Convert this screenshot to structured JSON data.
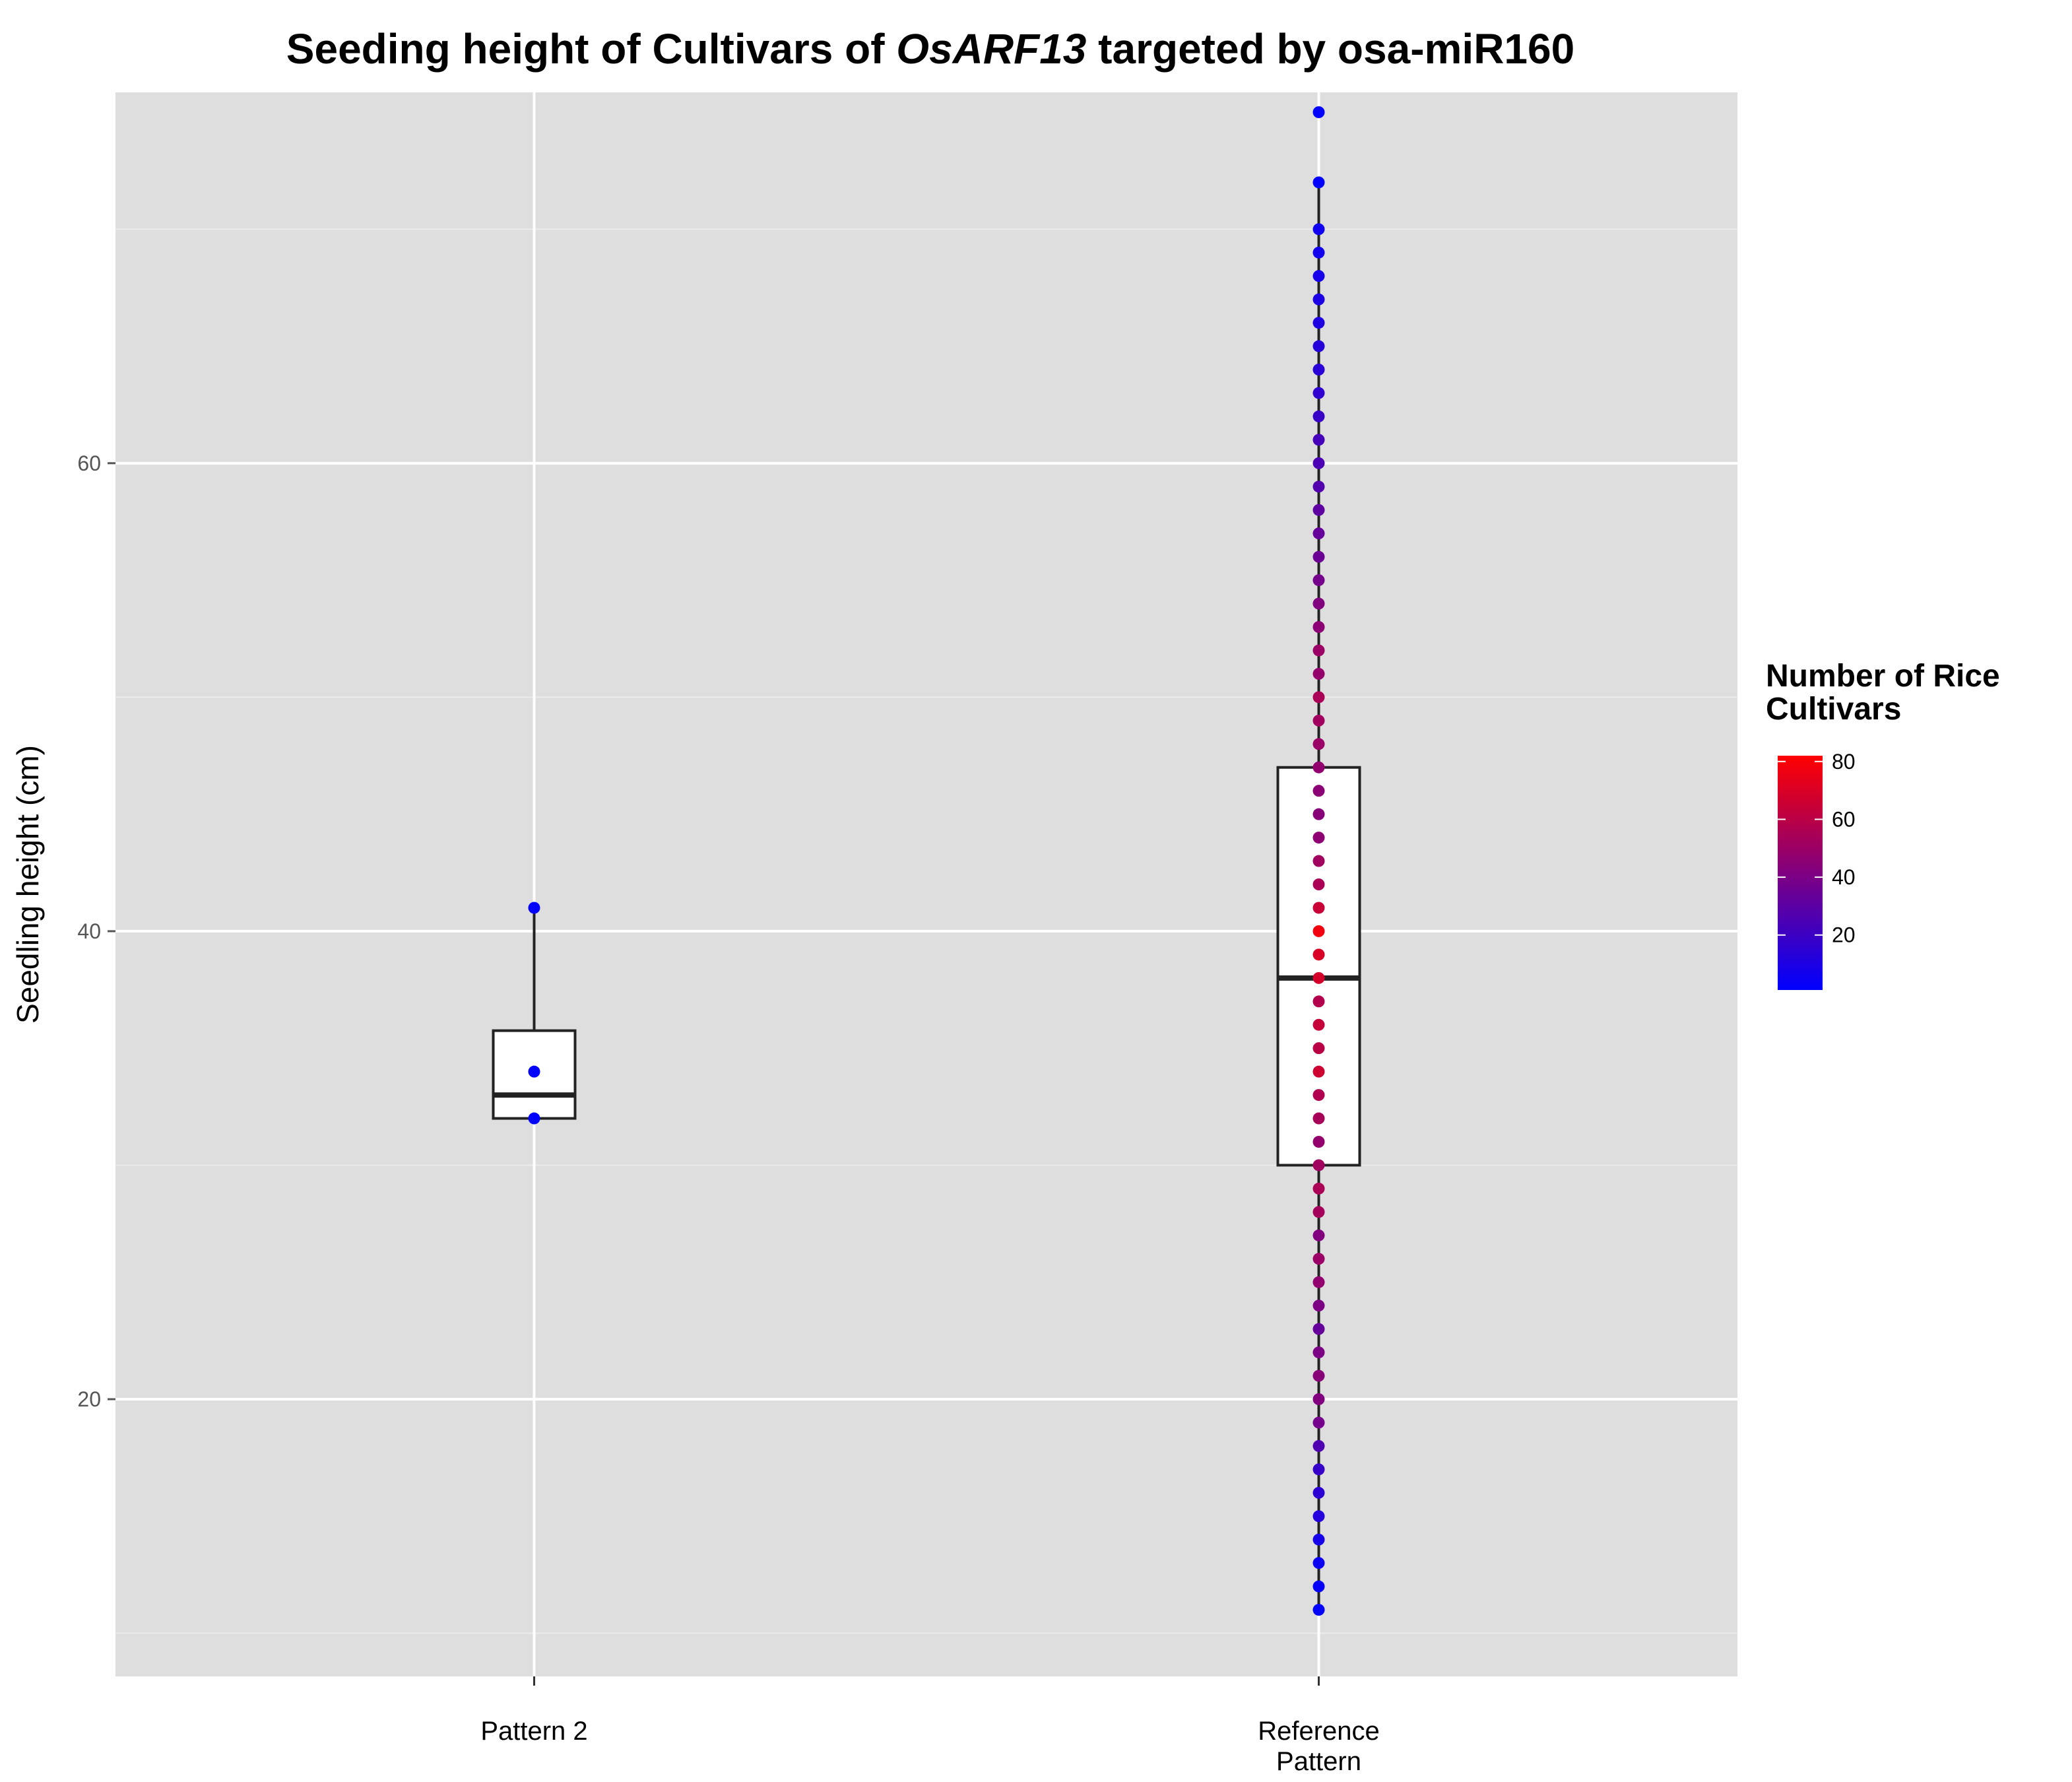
{
  "chart_data": {
    "type": "box",
    "title": {
      "prefix": "Seeding height of Cultivars of ",
      "italic": "OsARF13",
      "suffix": " targeted by osa-miR160"
    },
    "xlabel": "",
    "ylabel": "Seedling height (cm)",
    "ylim": [
      9,
      75
    ],
    "yticks": [
      20,
      40,
      60
    ],
    "categories": [
      {
        "label_lines": [
          "Pattern 2"
        ]
      },
      {
        "label_lines": [
          "Reference",
          "Pattern"
        ]
      }
    ],
    "boxes": [
      {
        "q1": 32,
        "median": 33,
        "q3": 35.75,
        "whisker_low": 32,
        "whisker_high": 41
      },
      {
        "q1": 30,
        "median": 38,
        "q3": 47,
        "whisker_low": 11,
        "whisker_high": 72
      }
    ],
    "points": [
      [
        {
          "y": 41,
          "count": 1
        },
        {
          "y": 34,
          "count": 1
        },
        {
          "y": 32,
          "count": 1
        }
      ],
      [
        {
          "y": 75,
          "count": 1
        },
        {
          "y": 72,
          "count": 2
        },
        {
          "y": 70,
          "count": 6
        },
        {
          "y": 69,
          "count": 7
        },
        {
          "y": 68,
          "count": 8
        },
        {
          "y": 67,
          "count": 10
        },
        {
          "y": 66,
          "count": 11
        },
        {
          "y": 65,
          "count": 13
        },
        {
          "y": 64,
          "count": 14
        },
        {
          "y": 63,
          "count": 16
        },
        {
          "y": 62,
          "count": 19
        },
        {
          "y": 61,
          "count": 23
        },
        {
          "y": 60,
          "count": 25
        },
        {
          "y": 59,
          "count": 27
        },
        {
          "y": 58,
          "count": 31
        },
        {
          "y": 57,
          "count": 33
        },
        {
          "y": 56,
          "count": 35
        },
        {
          "y": 55,
          "count": 38
        },
        {
          "y": 54,
          "count": 42
        },
        {
          "y": 53,
          "count": 45
        },
        {
          "y": 52,
          "count": 50
        },
        {
          "y": 51,
          "count": 48
        },
        {
          "y": 50,
          "count": 55
        },
        {
          "y": 49,
          "count": 52
        },
        {
          "y": 48,
          "count": 50
        },
        {
          "y": 47,
          "count": 47
        },
        {
          "y": 46,
          "count": 45
        },
        {
          "y": 45,
          "count": 44
        },
        {
          "y": 44,
          "count": 46
        },
        {
          "y": 43,
          "count": 52
        },
        {
          "y": 42,
          "count": 55
        },
        {
          "y": 41,
          "count": 65
        },
        {
          "y": 40,
          "count": 78
        },
        {
          "y": 39,
          "count": 70
        },
        {
          "y": 38,
          "count": 68
        },
        {
          "y": 37,
          "count": 58
        },
        {
          "y": 36,
          "count": 64
        },
        {
          "y": 35,
          "count": 60
        },
        {
          "y": 34,
          "count": 66
        },
        {
          "y": 33,
          "count": 57
        },
        {
          "y": 32,
          "count": 54
        },
        {
          "y": 31,
          "count": 48
        },
        {
          "y": 30,
          "count": 52
        },
        {
          "y": 29,
          "count": 55
        },
        {
          "y": 28,
          "count": 53
        },
        {
          "y": 27,
          "count": 42
        },
        {
          "y": 26,
          "count": 50
        },
        {
          "y": 25,
          "count": 47
        },
        {
          "y": 24,
          "count": 40
        },
        {
          "y": 23,
          "count": 33
        },
        {
          "y": 22,
          "count": 40
        },
        {
          "y": 21,
          "count": 44
        },
        {
          "y": 20,
          "count": 42
        },
        {
          "y": 19,
          "count": 38
        },
        {
          "y": 18,
          "count": 26
        },
        {
          "y": 17,
          "count": 18
        },
        {
          "y": 16,
          "count": 15
        },
        {
          "y": 15,
          "count": 12
        },
        {
          "y": 14,
          "count": 8
        },
        {
          "y": 13,
          "count": 5
        },
        {
          "y": 12,
          "count": 3
        },
        {
          "y": 11,
          "count": 2
        }
      ]
    ],
    "legend": {
      "title_lines": [
        "Number of Rice",
        "Cultivars"
      ],
      "placement": "right",
      "range": [
        1,
        82
      ],
      "ticks": [
        20,
        40,
        60,
        80
      ],
      "color_low": "#0000ff",
      "color_high": "#ff0000"
    },
    "colors": {
      "panel": "#dedede",
      "grid_major": "#ffffff",
      "grid_minor": "#ebebeb"
    },
    "grid": true
  }
}
